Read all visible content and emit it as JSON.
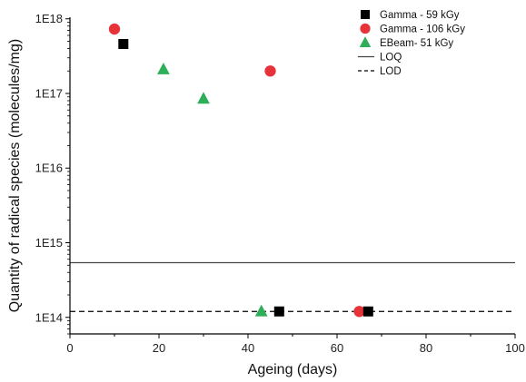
{
  "chart_data": {
    "type": "scatter",
    "title": "",
    "xlabel": "Ageing (days)",
    "ylabel": "Quantity of radical species (molecules/mg)",
    "xlim": [
      0,
      100
    ],
    "ylim": [
      60000000000000.0,
      1.05e+18
    ],
    "yscale": "log",
    "grid": false,
    "legend_position": "top-right",
    "x_ticks": [
      0,
      20,
      40,
      60,
      80,
      100
    ],
    "x_tick_labels": [
      "0",
      "20",
      "40",
      "60",
      "80",
      "100"
    ],
    "y_ticks": [
      100000000000000.0,
      1000000000000000.0,
      1e+16,
      1e+17,
      1e+18
    ],
    "y_tick_labels": [
      "1E14",
      "1E15",
      "1E16",
      "1E17",
      "1E18"
    ],
    "series": [
      {
        "name": "Gamma - 59 kGy",
        "marker": "square",
        "color": "#000000",
        "points": [
          {
            "x": 12,
            "y": 4.6e+17
          },
          {
            "x": 47,
            "y": 120000000000000.0
          },
          {
            "x": 67,
            "y": 120000000000000.0
          }
        ]
      },
      {
        "name": "Gamma - 106 kGy",
        "marker": "circle",
        "color": "#e8323a",
        "points": [
          {
            "x": 10,
            "y": 7.3e+17
          },
          {
            "x": 45,
            "y": 2e+17
          },
          {
            "x": 65,
            "y": 120000000000000.0
          }
        ]
      },
      {
        "name": "EBeam- 51 kGy",
        "marker": "triangle",
        "color": "#2fae5a",
        "points": [
          {
            "x": 21,
            "y": 2.1e+17
          },
          {
            "x": 30,
            "y": 8.5e+16
          },
          {
            "x": 43,
            "y": 120000000000000.0
          }
        ]
      }
    ],
    "reference_lines": [
      {
        "name": "LOQ",
        "y": 540000000000000.0,
        "style": "solid",
        "color": "#444444"
      },
      {
        "name": "LOD",
        "y": 120000000000000.0,
        "style": "dashed",
        "color": "#000000"
      }
    ]
  }
}
